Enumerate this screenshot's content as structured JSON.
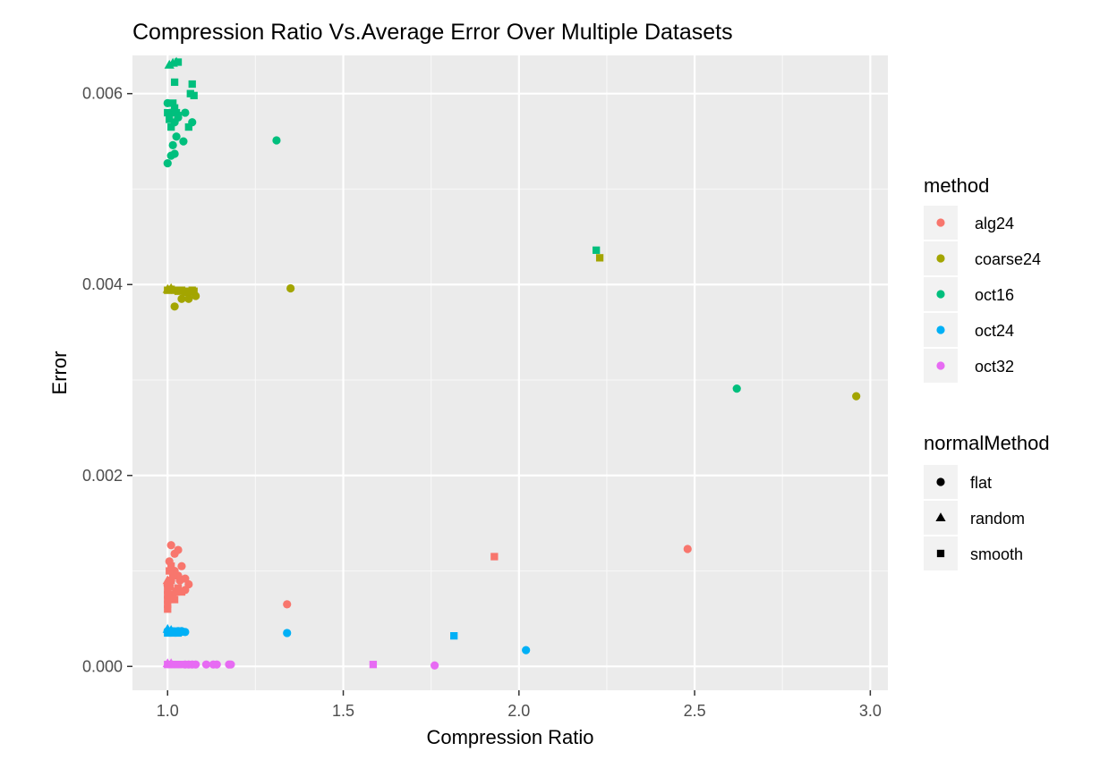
{
  "chart_data": {
    "type": "scatter",
    "title": "Compression Ratio Vs.Average Error Over Multiple Datasets",
    "xlabel": "Compression Ratio",
    "ylabel": "Error",
    "xlim": [
      0.9,
      3.05
    ],
    "ylim": [
      -0.00025,
      0.0064
    ],
    "xticks": [
      1.0,
      1.5,
      2.0,
      2.5,
      3.0
    ],
    "xtick_labels": [
      "1.0",
      "1.5",
      "2.0",
      "2.5",
      "3.0"
    ],
    "yticks": [
      0,
      0.002,
      0.004,
      0.006
    ],
    "ytick_labels": [
      "0.000",
      "0.002",
      "0.004",
      "0.006"
    ],
    "grid": true,
    "legends": [
      {
        "title": "method",
        "entries": [
          {
            "label": "alg24",
            "color": "#F8766D"
          },
          {
            "label": "coarse24",
            "color": "#A3A500"
          },
          {
            "label": "oct16",
            "color": "#00BF7D"
          },
          {
            "label": "oct24",
            "color": "#00B0F6"
          },
          {
            "label": "oct32",
            "color": "#E76BF3"
          }
        ]
      },
      {
        "title": "normalMethod",
        "entries": [
          {
            "label": "flat",
            "shape": "circle"
          },
          {
            "label": "random",
            "shape": "triangle"
          },
          {
            "label": "smooth",
            "shape": "square"
          }
        ]
      }
    ],
    "legend_position": "right",
    "series": [
      {
        "method": "alg24",
        "points": [
          [
            1.0,
            0.00085,
            "circle"
          ],
          [
            1.01,
            0.0009,
            "circle"
          ],
          [
            1.005,
            0.0011,
            "circle"
          ],
          [
            1.01,
            0.00127,
            "circle"
          ],
          [
            1.02,
            0.00118,
            "circle"
          ],
          [
            1.03,
            0.00122,
            "circle"
          ],
          [
            1.02,
            0.001,
            "circle"
          ],
          [
            1.03,
            0.00095,
            "circle"
          ],
          [
            1.04,
            0.00105,
            "circle"
          ],
          [
            1.05,
            0.0008,
            "circle"
          ],
          [
            1.06,
            0.00086,
            "circle"
          ],
          [
            1.015,
            0.00075,
            "circle"
          ],
          [
            1.035,
            0.0009,
            "circle"
          ],
          [
            1.05,
            0.00092,
            "circle"
          ],
          [
            1.34,
            0.00065,
            "circle"
          ],
          [
            2.48,
            0.00123,
            "circle"
          ],
          [
            1.0,
            0.0009,
            "triangle"
          ],
          [
            1.005,
            0.00088,
            "triangle"
          ],
          [
            1.01,
            0.00083,
            "triangle"
          ],
          [
            1.0,
            0.0006,
            "square"
          ],
          [
            1.0,
            0.00065,
            "square"
          ],
          [
            1.0,
            0.0007,
            "square"
          ],
          [
            1.0,
            0.00075,
            "square"
          ],
          [
            1.0,
            0.0008,
            "square"
          ],
          [
            1.005,
            0.00085,
            "square"
          ],
          [
            1.01,
            0.0009,
            "square"
          ],
          [
            1.015,
            0.00095,
            "square"
          ],
          [
            1.02,
            0.0007,
            "square"
          ],
          [
            1.025,
            0.00078,
            "square"
          ],
          [
            1.03,
            0.00082,
            "square"
          ],
          [
            1.04,
            0.00078,
            "square"
          ],
          [
            1.005,
            0.001,
            "square"
          ],
          [
            1.01,
            0.00105,
            "square"
          ],
          [
            1.93,
            0.00115,
            "square"
          ]
        ]
      },
      {
        "method": "coarse24",
        "points": [
          [
            1.02,
            0.00377,
            "circle"
          ],
          [
            1.04,
            0.00385,
            "circle"
          ],
          [
            1.06,
            0.00385,
            "circle"
          ],
          [
            1.08,
            0.00388,
            "circle"
          ],
          [
            1.05,
            0.00392,
            "circle"
          ],
          [
            1.35,
            0.00396,
            "circle"
          ],
          [
            2.96,
            0.00283,
            "circle"
          ],
          [
            1.0,
            0.00395,
            "triangle"
          ],
          [
            1.01,
            0.00396,
            "triangle"
          ],
          [
            1.0,
            0.00394,
            "square"
          ],
          [
            1.01,
            0.00395,
            "square"
          ],
          [
            1.02,
            0.00394,
            "square"
          ],
          [
            1.03,
            0.00393,
            "square"
          ],
          [
            1.04,
            0.00394,
            "square"
          ],
          [
            1.05,
            0.00393,
            "square"
          ],
          [
            1.06,
            0.00392,
            "square"
          ],
          [
            1.07,
            0.00394,
            "square"
          ],
          [
            1.075,
            0.00393,
            "square"
          ],
          [
            2.23,
            0.00428,
            "square"
          ]
        ]
      },
      {
        "method": "oct16",
        "points": [
          [
            1.0,
            0.00527,
            "circle"
          ],
          [
            1.01,
            0.00535,
            "circle"
          ],
          [
            1.02,
            0.00537,
            "circle"
          ],
          [
            1.015,
            0.00546,
            "circle"
          ],
          [
            1.025,
            0.00555,
            "circle"
          ],
          [
            1.045,
            0.0055,
            "circle"
          ],
          [
            1.02,
            0.0057,
            "circle"
          ],
          [
            1.03,
            0.00575,
            "circle"
          ],
          [
            1.05,
            0.0058,
            "circle"
          ],
          [
            1.07,
            0.0057,
            "circle"
          ],
          [
            1.01,
            0.0058,
            "circle"
          ],
          [
            1.0,
            0.0059,
            "circle"
          ],
          [
            1.31,
            0.00551,
            "circle"
          ],
          [
            2.62,
            0.00291,
            "circle"
          ],
          [
            1.005,
            0.0063,
            "triangle"
          ],
          [
            1.015,
            0.00632,
            "triangle"
          ],
          [
            1.025,
            0.00633,
            "triangle"
          ],
          [
            1.0,
            0.0058,
            "square"
          ],
          [
            1.005,
            0.00573,
            "square"
          ],
          [
            1.01,
            0.00565,
            "square"
          ],
          [
            1.015,
            0.0059,
            "square"
          ],
          [
            1.02,
            0.00585,
            "square"
          ],
          [
            1.025,
            0.0058,
            "square"
          ],
          [
            1.03,
            0.00577,
            "square"
          ],
          [
            1.02,
            0.00612,
            "square"
          ],
          [
            1.06,
            0.00565,
            "square"
          ],
          [
            1.065,
            0.006,
            "square"
          ],
          [
            1.075,
            0.00598,
            "square"
          ],
          [
            1.07,
            0.0061,
            "square"
          ],
          [
            1.03,
            0.00633,
            "square"
          ],
          [
            2.22,
            0.00436,
            "square"
          ]
        ]
      },
      {
        "method": "oct24",
        "points": [
          [
            1.0,
            0.00037,
            "circle"
          ],
          [
            1.02,
            0.00036,
            "circle"
          ],
          [
            1.03,
            0.00037,
            "circle"
          ],
          [
            1.04,
            0.00037,
            "circle"
          ],
          [
            1.05,
            0.00036,
            "circle"
          ],
          [
            1.34,
            0.00035,
            "circle"
          ],
          [
            2.02,
            0.00017,
            "circle"
          ],
          [
            1.0,
            0.00039,
            "triangle"
          ],
          [
            1.01,
            0.00038,
            "triangle"
          ],
          [
            1.0,
            0.00035,
            "square"
          ],
          [
            1.005,
            0.00036,
            "square"
          ],
          [
            1.01,
            0.00037,
            "square"
          ],
          [
            1.015,
            0.00035,
            "square"
          ],
          [
            1.02,
            0.00036,
            "square"
          ],
          [
            1.025,
            0.00037,
            "square"
          ],
          [
            1.03,
            0.00035,
            "square"
          ],
          [
            1.035,
            0.00036,
            "square"
          ],
          [
            1.815,
            0.00032,
            "square"
          ]
        ]
      },
      {
        "method": "oct32",
        "points": [
          [
            1.05,
            2e-05,
            "circle"
          ],
          [
            1.06,
            2e-05,
            "circle"
          ],
          [
            1.07,
            2e-05,
            "circle"
          ],
          [
            1.08,
            2e-05,
            "circle"
          ],
          [
            1.11,
            2e-05,
            "circle"
          ],
          [
            1.13,
            2e-05,
            "circle"
          ],
          [
            1.14,
            2e-05,
            "circle"
          ],
          [
            1.175,
            2e-05,
            "circle"
          ],
          [
            1.18,
            2e-05,
            "circle"
          ],
          [
            1.76,
            1e-05,
            "circle"
          ],
          [
            1.0,
            3e-05,
            "triangle"
          ],
          [
            1.01,
            3e-05,
            "triangle"
          ],
          [
            1.0,
            2e-05,
            "square"
          ],
          [
            1.01,
            2e-05,
            "square"
          ],
          [
            1.02,
            2e-05,
            "square"
          ],
          [
            1.03,
            2e-05,
            "square"
          ],
          [
            1.04,
            2e-05,
            "square"
          ],
          [
            1.585,
            2e-05,
            "square"
          ]
        ]
      }
    ]
  }
}
